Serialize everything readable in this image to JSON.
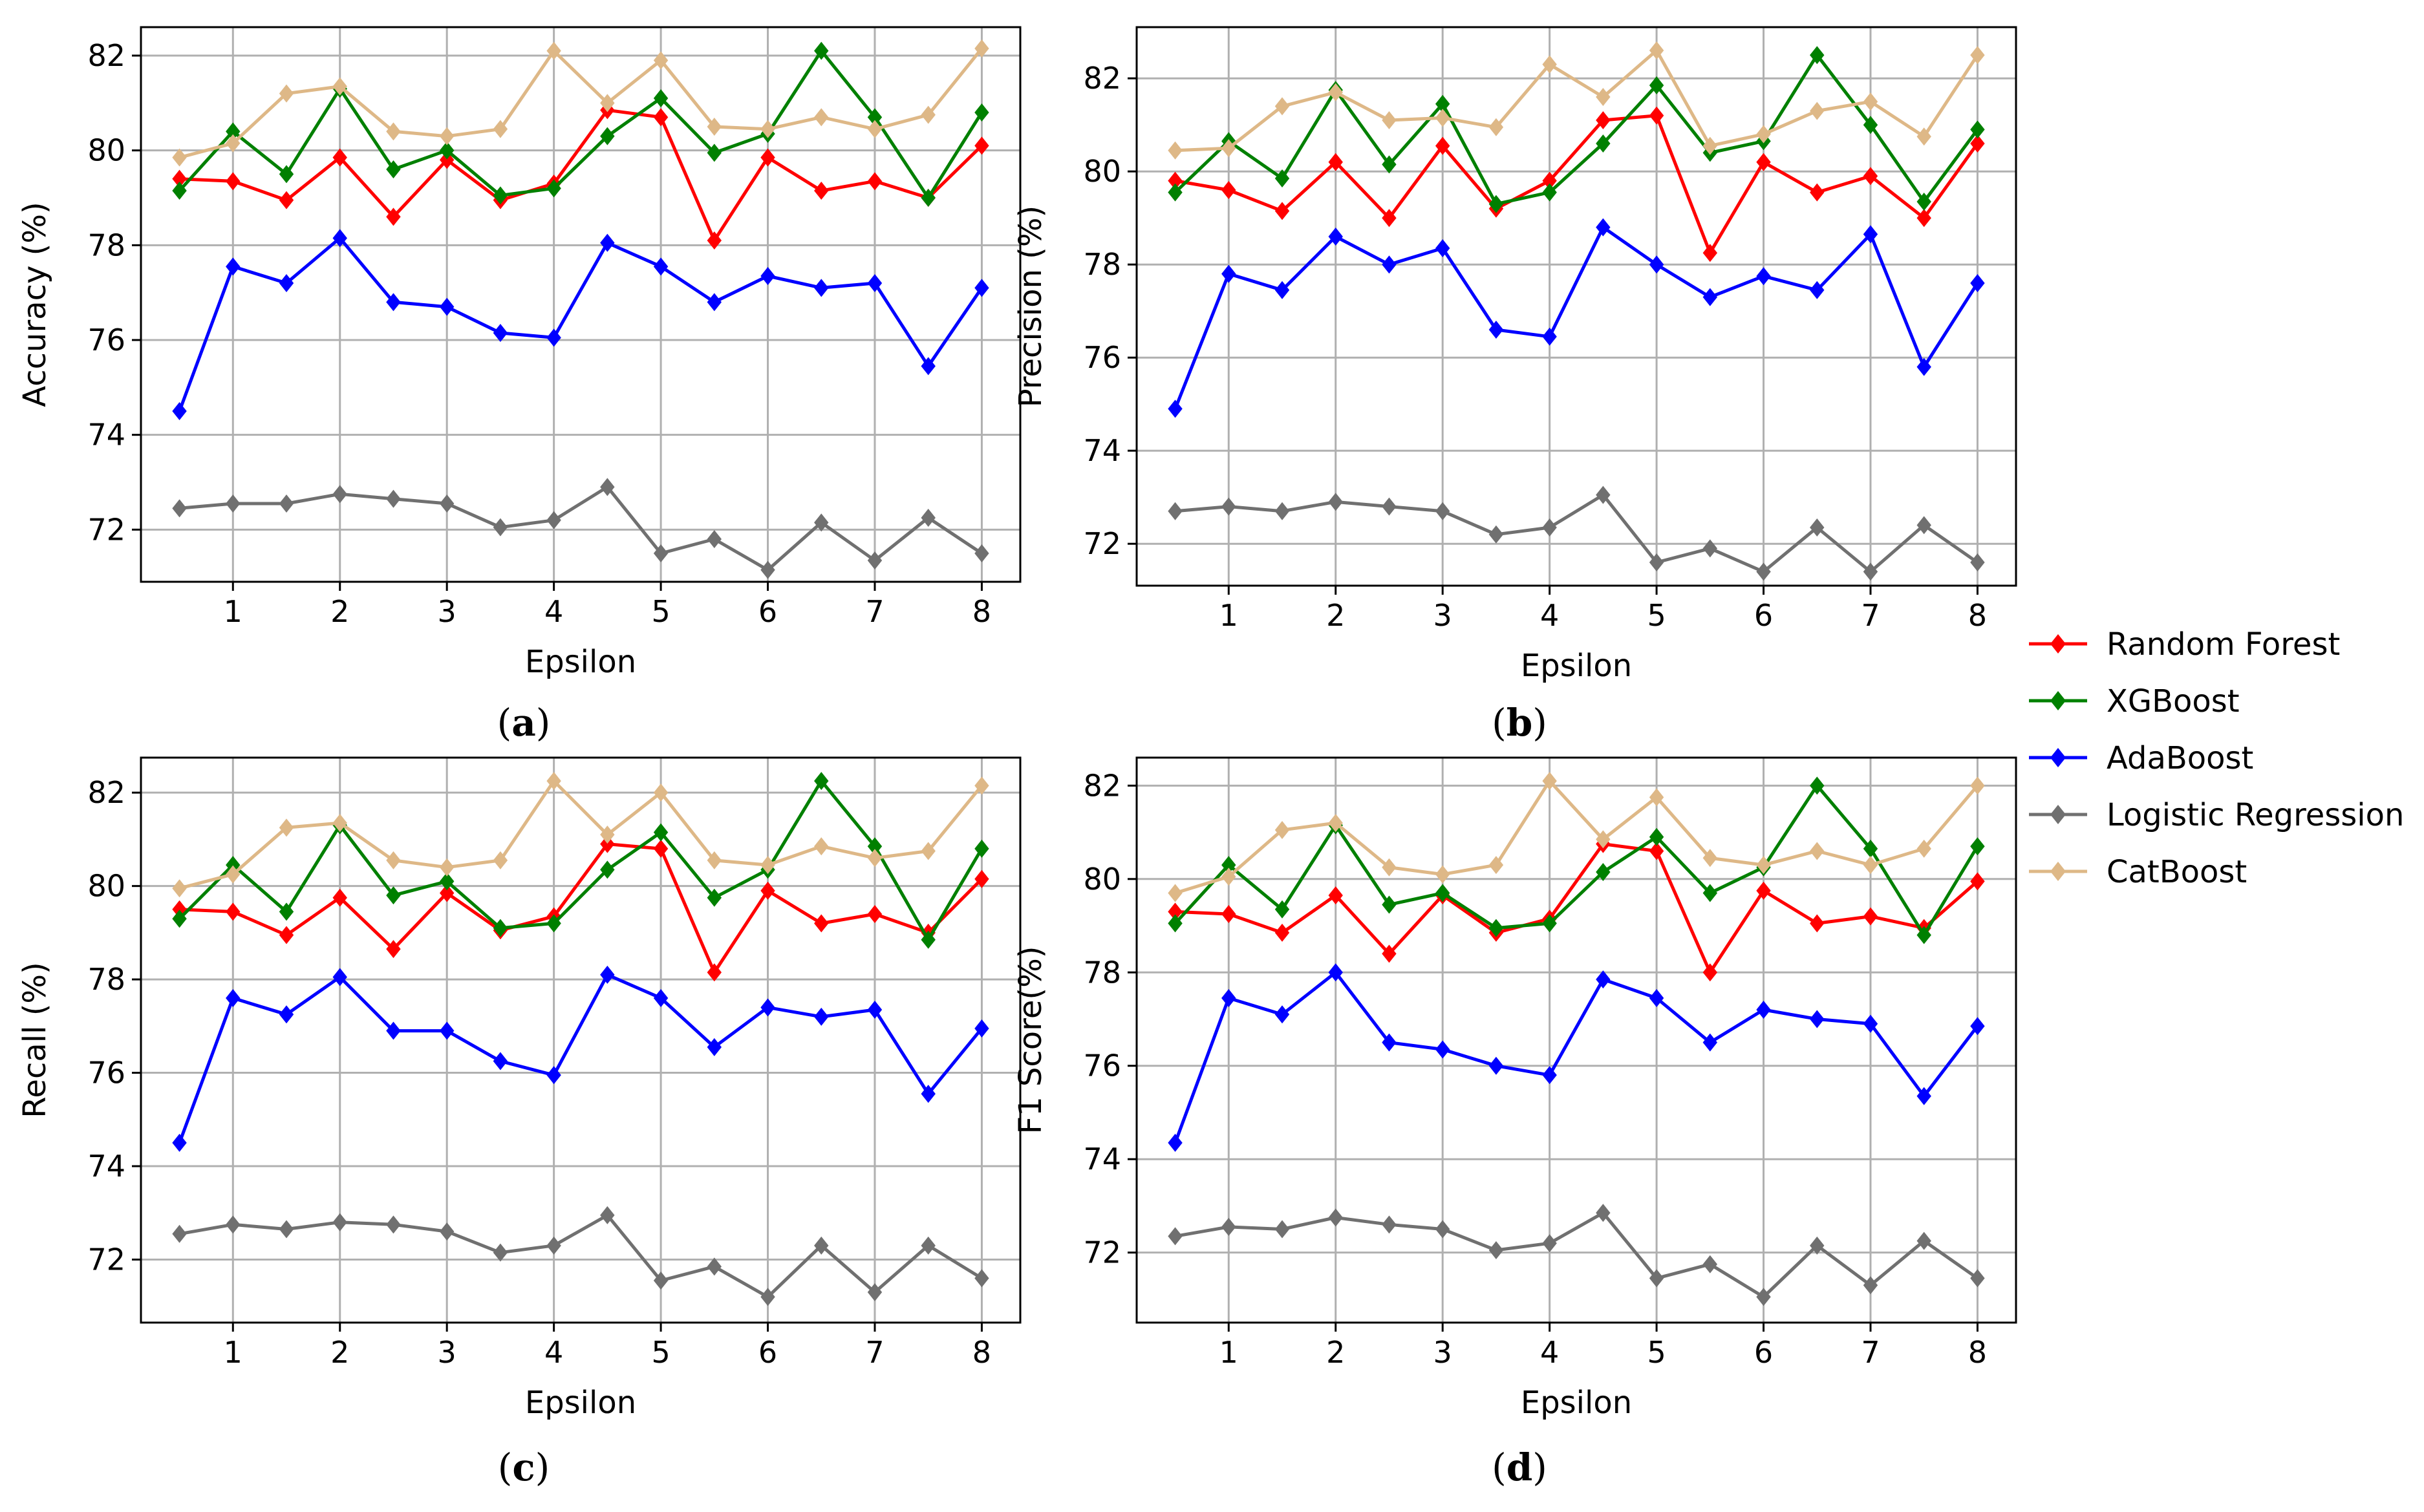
{
  "chart_data": [
    {
      "id": "a",
      "type": "line",
      "caption": "a",
      "title": "",
      "xlabel": "Epsilon",
      "ylabel": "Accuracy (%)",
      "x": [
        0.5,
        1,
        1.5,
        2,
        2.5,
        3,
        3.5,
        4,
        4.5,
        5,
        5.5,
        6,
        6.5,
        7,
        7.5,
        8
      ],
      "xticks": [
        "1",
        "2",
        "3",
        "4",
        "5",
        "6",
        "7",
        "8"
      ],
      "yticks": [
        "72",
        "74",
        "76",
        "78",
        "80",
        "82"
      ],
      "ylim": [
        70.9,
        82.6
      ],
      "xlim": [
        0.14,
        8.36
      ],
      "grid": true,
      "series": [
        {
          "name": "Random Forest",
          "color": "#ff0000",
          "values": [
            79.4,
            79.35,
            78.95,
            79.85,
            78.6,
            79.8,
            78.95,
            79.3,
            80.85,
            80.7,
            78.1,
            79.85,
            79.15,
            79.35,
            79.0,
            80.1
          ]
        },
        {
          "name": "XGBoost",
          "color": "#008000",
          "values": [
            79.15,
            80.4,
            79.5,
            81.3,
            79.6,
            80.0,
            79.05,
            79.2,
            80.3,
            81.1,
            79.95,
            80.35,
            82.1,
            80.7,
            79.0,
            80.8
          ]
        },
        {
          "name": "AdaBoost",
          "color": "#0000ff",
          "values": [
            74.5,
            77.55,
            77.2,
            78.15,
            76.8,
            76.7,
            76.15,
            76.05,
            78.05,
            77.55,
            76.8,
            77.35,
            77.1,
            77.2,
            75.45,
            77.1
          ]
        },
        {
          "name": "Logistic Regression",
          "color": "#707070",
          "values": [
            72.45,
            72.55,
            72.55,
            72.75,
            72.65,
            72.55,
            72.05,
            72.2,
            72.9,
            71.5,
            71.8,
            71.15,
            72.15,
            71.35,
            72.25,
            71.5
          ]
        },
        {
          "name": "CatBoost",
          "color": "#deb887",
          "values": [
            79.85,
            80.15,
            81.2,
            81.35,
            80.4,
            80.3,
            80.45,
            82.1,
            81.0,
            81.9,
            80.5,
            80.45,
            80.7,
            80.45,
            80.75,
            82.15
          ]
        }
      ]
    },
    {
      "id": "b",
      "type": "line",
      "caption": "b",
      "title": "",
      "xlabel": "Epsilon",
      "ylabel": "Precision (%)",
      "x": [
        0.5,
        1,
        1.5,
        2,
        2.5,
        3,
        3.5,
        4,
        4.5,
        5,
        5.5,
        6,
        6.5,
        7,
        7.5,
        8
      ],
      "xticks": [
        "1",
        "2",
        "3",
        "4",
        "5",
        "6",
        "7",
        "8"
      ],
      "yticks": [
        "72",
        "74",
        "76",
        "78",
        "80",
        "82"
      ],
      "ylim": [
        71.1,
        83.1
      ],
      "xlim": [
        0.14,
        8.36
      ],
      "grid": true,
      "series": [
        {
          "name": "Random Forest",
          "color": "#ff0000",
          "values": [
            79.8,
            79.6,
            79.15,
            80.2,
            79.0,
            80.55,
            79.2,
            79.8,
            81.1,
            81.2,
            78.25,
            80.2,
            79.55,
            79.9,
            79.0,
            80.6
          ]
        },
        {
          "name": "XGBoost",
          "color": "#008000",
          "values": [
            79.55,
            80.65,
            79.85,
            81.75,
            80.15,
            81.45,
            79.3,
            79.55,
            80.6,
            81.85,
            80.4,
            80.65,
            82.5,
            81.0,
            79.35,
            80.9
          ]
        },
        {
          "name": "AdaBoost",
          "color": "#0000ff",
          "values": [
            74.9,
            77.8,
            77.45,
            78.6,
            78.0,
            78.35,
            76.6,
            76.45,
            78.8,
            78.0,
            77.3,
            77.75,
            77.45,
            78.65,
            75.8,
            77.6
          ]
        },
        {
          "name": "Logistic Regression",
          "color": "#707070",
          "values": [
            72.7,
            72.8,
            72.7,
            72.9,
            72.8,
            72.7,
            72.2,
            72.35,
            73.05,
            71.6,
            71.9,
            71.4,
            72.35,
            71.4,
            72.4,
            71.6
          ]
        },
        {
          "name": "CatBoost",
          "color": "#deb887",
          "values": [
            80.45,
            80.5,
            81.4,
            81.7,
            81.1,
            81.15,
            80.95,
            82.3,
            81.6,
            82.6,
            80.55,
            80.8,
            81.3,
            81.5,
            80.75,
            82.5
          ]
        }
      ]
    },
    {
      "id": "c",
      "type": "line",
      "caption": "c",
      "title": "",
      "xlabel": "Epsilon",
      "ylabel": "Recall (%)",
      "x": [
        0.5,
        1,
        1.5,
        2,
        2.5,
        3,
        3.5,
        4,
        4.5,
        5,
        5.5,
        6,
        6.5,
        7,
        7.5,
        8
      ],
      "xticks": [
        "1",
        "2",
        "3",
        "4",
        "5",
        "6",
        "7",
        "8"
      ],
      "yticks": [
        "72",
        "74",
        "76",
        "78",
        "80",
        "82"
      ],
      "ylim": [
        70.65,
        82.75
      ],
      "xlim": [
        0.14,
        8.36
      ],
      "grid": true,
      "series": [
        {
          "name": "Random Forest",
          "color": "#ff0000",
          "values": [
            79.5,
            79.45,
            78.95,
            79.75,
            78.65,
            79.85,
            79.05,
            79.35,
            80.9,
            80.8,
            78.15,
            79.9,
            79.2,
            79.4,
            79.0,
            80.15
          ]
        },
        {
          "name": "XGBoost",
          "color": "#008000",
          "values": [
            79.3,
            80.45,
            79.45,
            81.3,
            79.8,
            80.1,
            79.1,
            79.2,
            80.35,
            81.15,
            79.75,
            80.35,
            82.25,
            80.85,
            78.85,
            80.8
          ]
        },
        {
          "name": "AdaBoost",
          "color": "#0000ff",
          "values": [
            74.5,
            77.6,
            77.25,
            78.05,
            76.9,
            76.9,
            76.25,
            75.95,
            78.1,
            77.6,
            76.55,
            77.4,
            77.2,
            77.35,
            75.55,
            76.95
          ]
        },
        {
          "name": "Logistic Regression",
          "color": "#707070",
          "values": [
            72.55,
            72.75,
            72.65,
            72.8,
            72.75,
            72.6,
            72.15,
            72.3,
            72.95,
            71.55,
            71.85,
            71.2,
            72.3,
            71.3,
            72.3,
            71.6
          ]
        },
        {
          "name": "CatBoost",
          "color": "#deb887",
          "values": [
            79.95,
            80.25,
            81.25,
            81.35,
            80.55,
            80.4,
            80.55,
            82.25,
            81.1,
            82.0,
            80.55,
            80.45,
            80.85,
            80.6,
            80.75,
            82.15
          ]
        }
      ]
    },
    {
      "id": "d",
      "type": "line",
      "caption": "d",
      "title": "",
      "xlabel": "Epsilon",
      "ylabel": "F1 Score(%)",
      "x": [
        0.5,
        1,
        1.5,
        2,
        2.5,
        3,
        3.5,
        4,
        4.5,
        5,
        5.5,
        6,
        6.5,
        7,
        7.5,
        8
      ],
      "xticks": [
        "1",
        "2",
        "3",
        "4",
        "5",
        "6",
        "7",
        "8"
      ],
      "yticks": [
        "72",
        "74",
        "76",
        "78",
        "80",
        "82"
      ],
      "ylim": [
        70.5,
        82.6
      ],
      "xlim": [
        0.14,
        8.36
      ],
      "grid": true,
      "series": [
        {
          "name": "Random Forest",
          "color": "#ff0000",
          "values": [
            79.3,
            79.25,
            78.85,
            79.65,
            78.4,
            79.65,
            78.85,
            79.15,
            80.75,
            80.6,
            78.0,
            79.75,
            79.05,
            79.2,
            78.95,
            79.95
          ]
        },
        {
          "name": "XGBoost",
          "color": "#008000",
          "values": [
            79.05,
            80.3,
            79.35,
            81.15,
            79.45,
            79.7,
            78.95,
            79.05,
            80.15,
            80.9,
            79.7,
            80.25,
            82.0,
            80.65,
            78.8,
            80.7
          ]
        },
        {
          "name": "AdaBoost",
          "color": "#0000ff",
          "values": [
            74.35,
            77.45,
            77.1,
            78.0,
            76.5,
            76.35,
            76.0,
            75.8,
            77.85,
            77.45,
            76.5,
            77.2,
            77.0,
            76.9,
            75.35,
            76.85
          ]
        },
        {
          "name": "Logistic Regression",
          "color": "#707070",
          "values": [
            72.35,
            72.55,
            72.5,
            72.75,
            72.6,
            72.5,
            72.05,
            72.2,
            72.85,
            71.45,
            71.75,
            71.05,
            72.15,
            71.3,
            72.25,
            71.45
          ]
        },
        {
          "name": "CatBoost",
          "color": "#deb887",
          "values": [
            79.7,
            80.05,
            81.05,
            81.2,
            80.25,
            80.1,
            80.3,
            82.1,
            80.85,
            81.75,
            80.45,
            80.3,
            80.6,
            80.3,
            80.65,
            82.0
          ]
        }
      ]
    }
  ],
  "legend": {
    "placement": "right",
    "entries": [
      {
        "name": "Random Forest",
        "color": "#ff0000"
      },
      {
        "name": "XGBoost",
        "color": "#008000"
      },
      {
        "name": "AdaBoost",
        "color": "#0000ff"
      },
      {
        "name": "Logistic Regression",
        "color": "#707070"
      },
      {
        "name": "CatBoost",
        "color": "#deb887"
      }
    ]
  }
}
